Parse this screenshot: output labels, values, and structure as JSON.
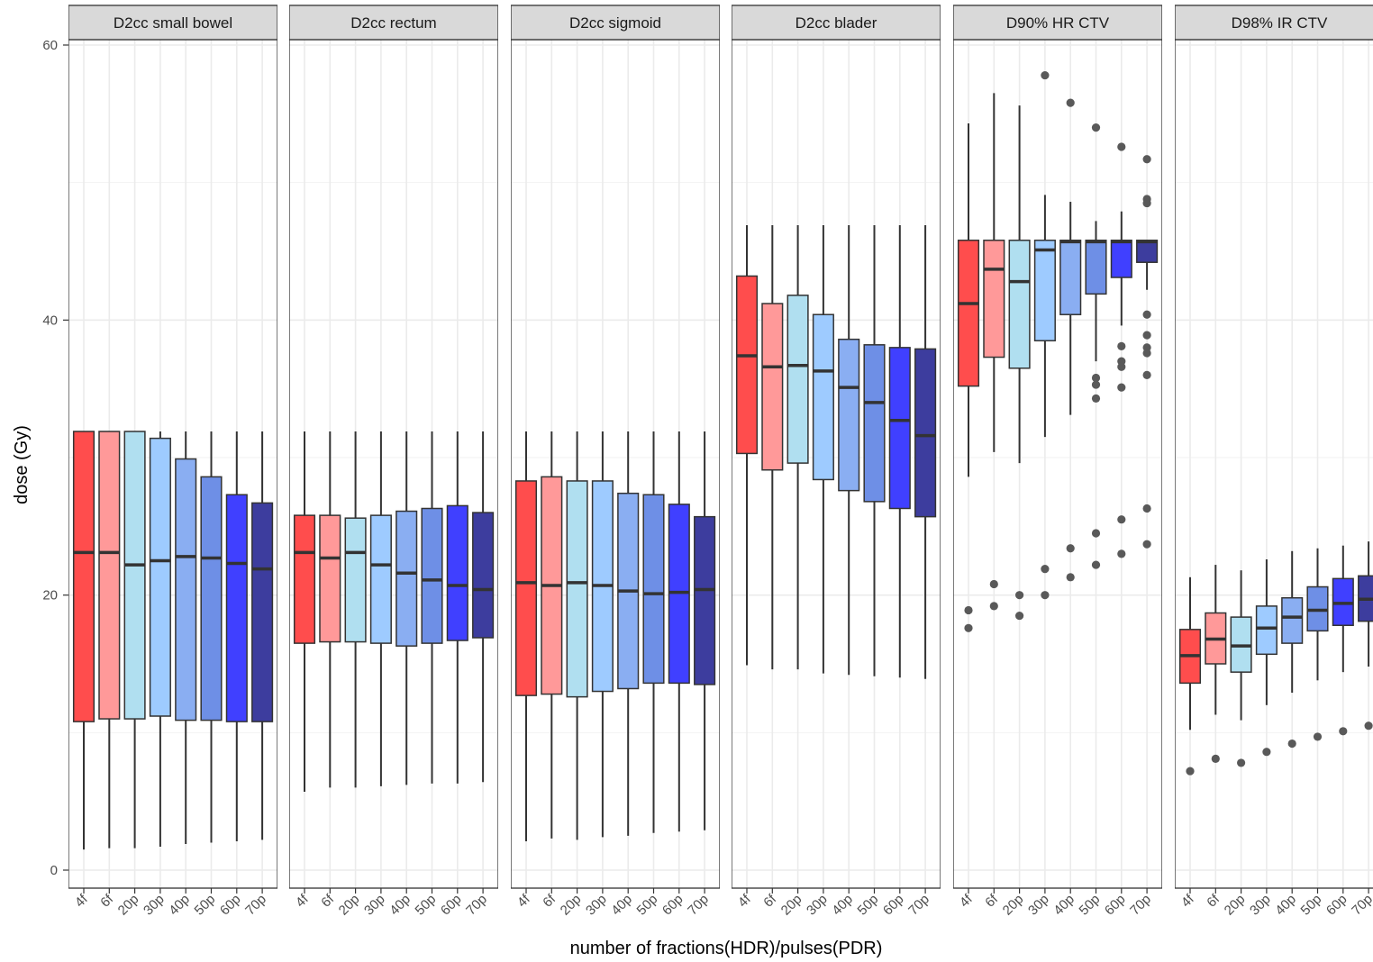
{
  "chart_data": {
    "type": "boxplot",
    "xlabel": "number of fractions(HDR)/pulses(PDR)",
    "ylabel": "dose (Gy)",
    "ylim": [
      -1.3,
      61.5
    ],
    "yticks": [
      "0",
      "20",
      "40",
      "60"
    ],
    "grid": true,
    "categories": [
      "4f",
      "6f",
      "20p",
      "30p",
      "40p",
      "50p",
      "60p",
      "70p"
    ],
    "colors": [
      "#ff4d4d",
      "#ff9999",
      "#b0dff0",
      "#9ecbff",
      "#8aaef2",
      "#6e8fe6",
      "#4040ff",
      "#3d3d9e"
    ],
    "panels": [
      {
        "title": "D2cc small bowel",
        "boxes": [
          {
            "low": 1.5,
            "q1": 10.8,
            "median": 23.1,
            "q3": 31.9,
            "high": 31.9,
            "outliers": []
          },
          {
            "low": 1.6,
            "q1": 11.0,
            "median": 23.1,
            "q3": 31.9,
            "high": 31.9,
            "outliers": []
          },
          {
            "low": 1.6,
            "q1": 11.0,
            "median": 22.2,
            "q3": 31.9,
            "high": 31.9,
            "outliers": []
          },
          {
            "low": 1.7,
            "q1": 11.2,
            "median": 22.5,
            "q3": 31.4,
            "high": 31.9,
            "outliers": []
          },
          {
            "low": 1.9,
            "q1": 10.9,
            "median": 22.8,
            "q3": 29.9,
            "high": 31.9,
            "outliers": []
          },
          {
            "low": 2.0,
            "q1": 10.9,
            "median": 22.7,
            "q3": 28.6,
            "high": 31.9,
            "outliers": []
          },
          {
            "low": 2.1,
            "q1": 10.8,
            "median": 22.3,
            "q3": 27.3,
            "high": 31.9,
            "outliers": []
          },
          {
            "low": 2.2,
            "q1": 10.8,
            "median": 21.9,
            "q3": 26.7,
            "high": 31.9,
            "outliers": []
          }
        ]
      },
      {
        "title": "D2cc rectum",
        "boxes": [
          {
            "low": 5.7,
            "q1": 16.5,
            "median": 23.1,
            "q3": 25.8,
            "high": 31.9,
            "outliers": []
          },
          {
            "low": 6.0,
            "q1": 16.6,
            "median": 22.7,
            "q3": 25.8,
            "high": 31.9,
            "outliers": []
          },
          {
            "low": 6.0,
            "q1": 16.6,
            "median": 23.1,
            "q3": 25.6,
            "high": 31.9,
            "outliers": []
          },
          {
            "low": 6.1,
            "q1": 16.5,
            "median": 22.2,
            "q3": 25.8,
            "high": 31.9,
            "outliers": []
          },
          {
            "low": 6.2,
            "q1": 16.3,
            "median": 21.6,
            "q3": 26.1,
            "high": 31.9,
            "outliers": []
          },
          {
            "low": 6.3,
            "q1": 16.5,
            "median": 21.1,
            "q3": 26.3,
            "high": 31.9,
            "outliers": []
          },
          {
            "low": 6.3,
            "q1": 16.7,
            "median": 20.7,
            "q3": 26.5,
            "high": 31.9,
            "outliers": []
          },
          {
            "low": 6.4,
            "q1": 16.9,
            "median": 20.4,
            "q3": 26.0,
            "high": 31.9,
            "outliers": []
          }
        ]
      },
      {
        "title": "D2cc sigmoid",
        "boxes": [
          {
            "low": 2.1,
            "q1": 12.7,
            "median": 20.9,
            "q3": 28.3,
            "high": 31.9,
            "outliers": []
          },
          {
            "low": 2.3,
            "q1": 12.8,
            "median": 20.7,
            "q3": 28.6,
            "high": 31.9,
            "outliers": []
          },
          {
            "low": 2.2,
            "q1": 12.6,
            "median": 20.9,
            "q3": 28.3,
            "high": 31.9,
            "outliers": []
          },
          {
            "low": 2.4,
            "q1": 13.0,
            "median": 20.7,
            "q3": 28.3,
            "high": 31.9,
            "outliers": []
          },
          {
            "low": 2.5,
            "q1": 13.2,
            "median": 20.3,
            "q3": 27.4,
            "high": 31.9,
            "outliers": []
          },
          {
            "low": 2.7,
            "q1": 13.6,
            "median": 20.1,
            "q3": 27.3,
            "high": 31.9,
            "outliers": []
          },
          {
            "low": 2.8,
            "q1": 13.6,
            "median": 20.2,
            "q3": 26.6,
            "high": 31.9,
            "outliers": []
          },
          {
            "low": 2.9,
            "q1": 13.5,
            "median": 20.4,
            "q3": 25.7,
            "high": 31.9,
            "outliers": []
          }
        ]
      },
      {
        "title": "D2cc blader",
        "boxes": [
          {
            "low": 14.9,
            "q1": 30.3,
            "median": 37.4,
            "q3": 43.2,
            "high": 46.9,
            "outliers": []
          },
          {
            "low": 14.6,
            "q1": 29.1,
            "median": 36.6,
            "q3": 41.2,
            "high": 46.9,
            "outliers": []
          },
          {
            "low": 14.6,
            "q1": 29.6,
            "median": 36.7,
            "q3": 41.8,
            "high": 46.9,
            "outliers": []
          },
          {
            "low": 14.3,
            "q1": 28.4,
            "median": 36.3,
            "q3": 40.4,
            "high": 46.9,
            "outliers": []
          },
          {
            "low": 14.2,
            "q1": 27.6,
            "median": 35.1,
            "q3": 38.6,
            "high": 46.9,
            "outliers": []
          },
          {
            "low": 14.1,
            "q1": 26.8,
            "median": 34.0,
            "q3": 38.2,
            "high": 46.9,
            "outliers": []
          },
          {
            "low": 14.0,
            "q1": 26.3,
            "median": 32.7,
            "q3": 38.0,
            "high": 46.9,
            "outliers": []
          },
          {
            "low": 13.9,
            "q1": 25.7,
            "median": 31.6,
            "q3": 37.9,
            "high": 46.9,
            "outliers": []
          }
        ]
      },
      {
        "title": "D90% HR CTV",
        "boxes": [
          {
            "low": 28.6,
            "q1": 35.2,
            "median": 41.2,
            "q3": 45.8,
            "high": 54.3,
            "outliers": [
              18.9,
              17.6
            ]
          },
          {
            "low": 30.4,
            "q1": 37.3,
            "median": 43.7,
            "q3": 45.8,
            "high": 56.5,
            "outliers": [
              20.8,
              19.2
            ]
          },
          {
            "low": 29.6,
            "q1": 36.5,
            "median": 42.8,
            "q3": 45.8,
            "high": 55.6,
            "outliers": [
              20.0,
              18.5
            ]
          },
          {
            "low": 31.5,
            "q1": 38.5,
            "median": 45.1,
            "q3": 45.8,
            "high": 49.1,
            "outliers": [
              57.8,
              21.9,
              20.0
            ]
          },
          {
            "low": 33.1,
            "q1": 40.4,
            "median": 45.7,
            "q3": 45.8,
            "high": 48.6,
            "outliers": [
              55.8,
              23.4,
              21.3
            ]
          },
          {
            "low": 37.0,
            "q1": 41.9,
            "median": 45.7,
            "q3": 45.8,
            "high": 47.2,
            "outliers": [
              54.0,
              35.8,
              35.3,
              34.3,
              24.5,
              22.2
            ]
          },
          {
            "low": 39.6,
            "q1": 43.1,
            "median": 45.7,
            "q3": 45.8,
            "high": 47.9,
            "outliers": [
              52.6,
              38.1,
              37.0,
              36.6,
              35.1,
              25.5,
              23.0
            ]
          },
          {
            "low": 42.2,
            "q1": 44.2,
            "median": 45.7,
            "q3": 45.8,
            "high": 45.8,
            "outliers": [
              51.7,
              48.8,
              48.5,
              40.4,
              38.9,
              38.0,
              37.6,
              36.0,
              26.3,
              23.7
            ]
          }
        ]
      },
      {
        "title": "D98% IR CTV",
        "boxes": [
          {
            "low": 10.2,
            "q1": 13.6,
            "median": 15.6,
            "q3": 17.5,
            "high": 21.3,
            "outliers": [
              7.2
            ]
          },
          {
            "low": 11.3,
            "q1": 15.0,
            "median": 16.8,
            "q3": 18.7,
            "high": 22.2,
            "outliers": [
              8.1
            ]
          },
          {
            "low": 10.9,
            "q1": 14.4,
            "median": 16.3,
            "q3": 18.4,
            "high": 21.8,
            "outliers": [
              7.8
            ]
          },
          {
            "low": 12.0,
            "q1": 15.7,
            "median": 17.6,
            "q3": 19.2,
            "high": 22.6,
            "outliers": [
              8.6
            ]
          },
          {
            "low": 12.9,
            "q1": 16.5,
            "median": 18.4,
            "q3": 19.8,
            "high": 23.2,
            "outliers": [
              9.2
            ]
          },
          {
            "low": 13.8,
            "q1": 17.4,
            "median": 18.9,
            "q3": 20.6,
            "high": 23.4,
            "outliers": [
              9.7
            ]
          },
          {
            "low": 14.4,
            "q1": 17.8,
            "median": 19.4,
            "q3": 21.2,
            "high": 23.6,
            "outliers": [
              10.1
            ]
          },
          {
            "low": 14.8,
            "q1": 18.1,
            "median": 19.7,
            "q3": 21.4,
            "high": 23.9,
            "outliers": [
              10.5
            ]
          }
        ]
      }
    ]
  }
}
